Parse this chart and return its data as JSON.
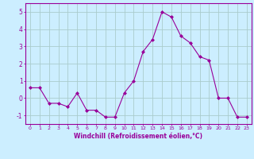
{
  "x": [
    0,
    1,
    2,
    3,
    4,
    5,
    6,
    7,
    8,
    9,
    10,
    11,
    12,
    13,
    14,
    15,
    16,
    17,
    18,
    19,
    20,
    21,
    22,
    23
  ],
  "y": [
    0.6,
    0.6,
    -0.3,
    -0.3,
    -0.5,
    0.3,
    -0.7,
    -0.7,
    -1.1,
    -1.1,
    0.3,
    1.0,
    2.7,
    3.4,
    5.0,
    4.7,
    3.6,
    3.2,
    2.4,
    2.2,
    0.0,
    0.0,
    -1.1,
    -1.1
  ],
  "line_color": "#990099",
  "marker": "D",
  "marker_size": 2,
  "bg_color": "#cceeff",
  "grid_color": "#aacccc",
  "xlabel": "Windchill (Refroidissement éolien,°C)",
  "xlabel_color": "#990099",
  "ylabel_ticks": [
    -1,
    0,
    1,
    2,
    3,
    4,
    5
  ],
  "xtick_labels": [
    "0",
    "1",
    "2",
    "3",
    "4",
    "5",
    "6",
    "7",
    "8",
    "9",
    "10",
    "11",
    "12",
    "13",
    "14",
    "15",
    "16",
    "17",
    "18",
    "19",
    "20",
    "21",
    "22",
    "23"
  ],
  "ylim": [
    -1.5,
    5.5
  ],
  "xlim": [
    -0.5,
    23.5
  ],
  "tick_color": "#990099",
  "spine_color": "#990099"
}
